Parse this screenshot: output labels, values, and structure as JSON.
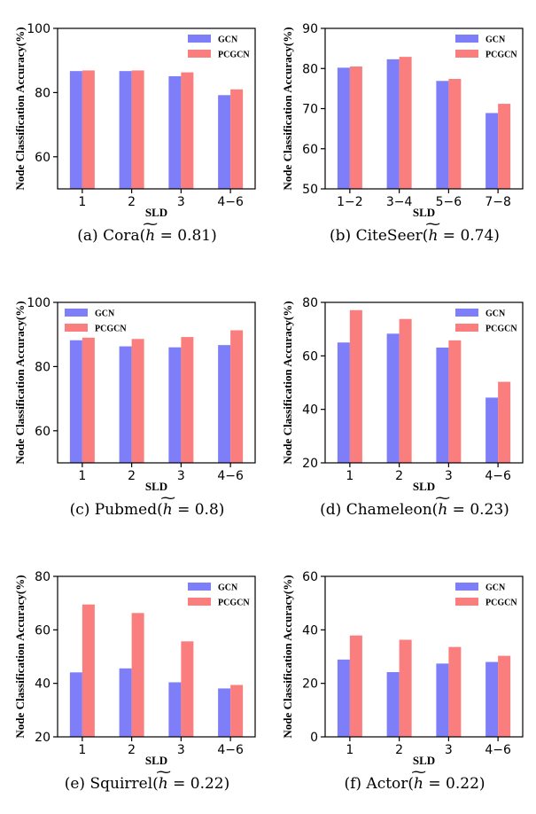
{
  "colors": {
    "gcn": "#7e7ef8",
    "pcgcn": "#fa7e7e"
  },
  "shared": {
    "ylabel": "Node Classification Accuracy(%)",
    "xlabel": "SLD"
  },
  "chart_data": [
    {
      "type": "bar",
      "title": "Cora",
      "caption": {
        "prefix": "(a) Cora(",
        "value": " = 0.81)"
      },
      "categories": [
        "1",
        "2",
        "3",
        "4−6"
      ],
      "ylim": [
        50,
        100
      ],
      "yticks": [
        60,
        80,
        100
      ],
      "series": [
        {
          "name": "GCN",
          "values": [
            86.7,
            86.7,
            85.1,
            79.2
          ]
        },
        {
          "name": "PCGCN",
          "values": [
            86.9,
            86.9,
            86.3,
            81.0
          ]
        }
      ],
      "xlabel": "SLD",
      "ylabel": "Node Classification Accuracy(%)",
      "grid": false,
      "legend": "top-right"
    },
    {
      "type": "bar",
      "title": "CiteSeer",
      "caption": {
        "prefix": "(b) CiteSeer(",
        "value": " = 0.74)"
      },
      "categories": [
        "1−2",
        "3−4",
        "5−6",
        "7−8"
      ],
      "ylim": [
        50,
        90
      ],
      "yticks": [
        50,
        60,
        70,
        80,
        90
      ],
      "series": [
        {
          "name": "GCN",
          "values": [
            80.2,
            82.3,
            76.9,
            68.9
          ]
        },
        {
          "name": "PCGCN",
          "values": [
            80.5,
            82.9,
            77.4,
            71.2
          ]
        }
      ],
      "xlabel": "SLD",
      "ylabel": "Node Classification Accuracy(%)",
      "grid": false,
      "legend": "top-right"
    },
    {
      "type": "bar",
      "title": "Pubmed",
      "caption": {
        "prefix": "(c) Pubmed(",
        "value": " = 0.8)"
      },
      "categories": [
        "1",
        "2",
        "3",
        "4−6"
      ],
      "ylim": [
        50,
        100
      ],
      "yticks": [
        60,
        80,
        100
      ],
      "series": [
        {
          "name": "GCN",
          "values": [
            88.2,
            86.3,
            86.0,
            86.7
          ]
        },
        {
          "name": "PCGCN",
          "values": [
            89.0,
            88.6,
            89.2,
            91.3
          ]
        }
      ],
      "xlabel": "SLD",
      "ylabel": "Node Classification Accuracy(%)",
      "grid": false,
      "legend": "top-left"
    },
    {
      "type": "bar",
      "title": "Chameleon",
      "caption": {
        "prefix": "(d) Chameleon(",
        "value": " = 0.23)"
      },
      "categories": [
        "1",
        "2",
        "3",
        "4−6"
      ],
      "ylim": [
        20,
        80
      ],
      "yticks": [
        20,
        40,
        60,
        80
      ],
      "series": [
        {
          "name": "GCN",
          "values": [
            65.0,
            68.3,
            63.1,
            44.4
          ]
        },
        {
          "name": "PCGCN",
          "values": [
            77.1,
            73.8,
            65.8,
            50.3
          ]
        }
      ],
      "xlabel": "SLD",
      "ylabel": "Node Classification Accuracy(%)",
      "grid": false,
      "legend": "top-right"
    },
    {
      "type": "bar",
      "title": "Squirrel",
      "caption": {
        "prefix": "(e) Squirrel(",
        "value": " = 0.22)"
      },
      "categories": [
        "1",
        "2",
        "3",
        "4−6"
      ],
      "ylim": [
        20,
        80
      ],
      "yticks": [
        20,
        40,
        60,
        80
      ],
      "series": [
        {
          "name": "GCN",
          "values": [
            44.1,
            45.6,
            40.4,
            38.1
          ]
        },
        {
          "name": "PCGCN",
          "values": [
            69.5,
            66.3,
            55.7,
            39.4
          ]
        }
      ],
      "xlabel": "SLD",
      "ylabel": "Node Classification Accuracy(%)",
      "grid": false,
      "legend": "top-right"
    },
    {
      "type": "bar",
      "title": "Actor",
      "caption": {
        "prefix": "(f) Actor(",
        "value": " = 0.22)"
      },
      "categories": [
        "1",
        "2",
        "3",
        "4−6"
      ],
      "ylim": [
        0,
        60
      ],
      "yticks": [
        0,
        20,
        40,
        60
      ],
      "series": [
        {
          "name": "GCN",
          "values": [
            28.9,
            24.2,
            27.4,
            28.0
          ]
        },
        {
          "name": "PCGCN",
          "values": [
            37.9,
            36.3,
            33.6,
            30.3
          ]
        }
      ],
      "xlabel": "SLD",
      "ylabel": "Node Classification Accuracy(%)",
      "grid": false,
      "legend": "top-right"
    }
  ]
}
